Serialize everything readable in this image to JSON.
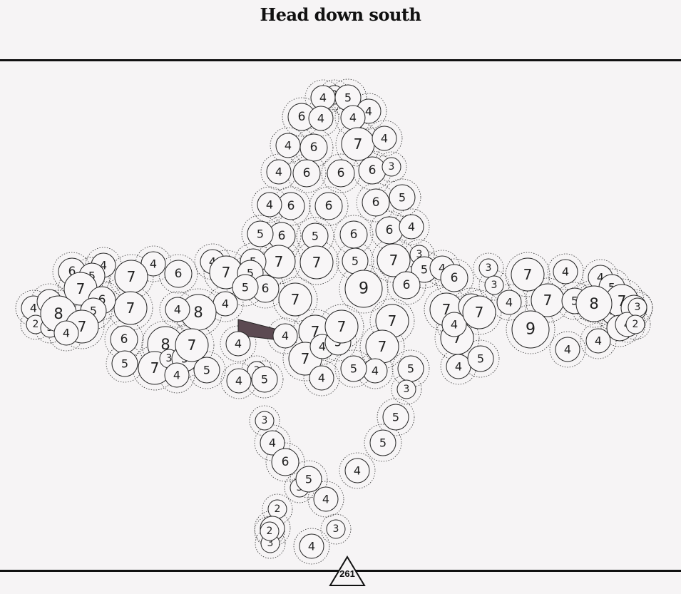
{
  "title": "Head down south",
  "moves_left": "261",
  "colors": {
    "background": "#f6f4f5",
    "bubble_fill": "#f8f6f7",
    "bubble_stroke": "#222222",
    "link_fill": "#5c4a52"
  },
  "board": {
    "bubbles": [
      {
        "v": "2"
      },
      {
        "v": "5"
      },
      {
        "v": "4"
      },
      {
        "v": "4"
      },
      {
        "v": "6"
      },
      {
        "v": "4"
      },
      {
        "v": "4"
      },
      {
        "v": "6"
      },
      {
        "v": "7"
      },
      {
        "v": "4"
      },
      {
        "v": "4"
      },
      {
        "v": "6"
      },
      {
        "v": "6"
      },
      {
        "v": "6"
      },
      {
        "v": "3"
      },
      {
        "v": "4"
      },
      {
        "v": "6"
      },
      {
        "v": "6"
      },
      {
        "v": "6"
      },
      {
        "v": "5"
      },
      {
        "v": "4"
      },
      {
        "v": "6"
      },
      {
        "v": "5"
      },
      {
        "v": "6"
      },
      {
        "v": "6"
      },
      {
        "v": "4"
      },
      {
        "v": "7"
      },
      {
        "v": "7"
      },
      {
        "v": "5"
      },
      {
        "v": "7"
      },
      {
        "v": "3"
      },
      {
        "v": "5"
      },
      {
        "v": "4"
      },
      {
        "v": "4"
      },
      {
        "v": "7"
      },
      {
        "v": "5"
      },
      {
        "v": "5"
      },
      {
        "v": "6"
      },
      {
        "v": "7"
      },
      {
        "v": "5"
      },
      {
        "v": "9"
      },
      {
        "v": "6"
      },
      {
        "v": "6"
      },
      {
        "v": "3"
      },
      {
        "v": "4"
      },
      {
        "v": "6"
      },
      {
        "v": "4"
      },
      {
        "v": "7"
      },
      {
        "v": "4"
      },
      {
        "v": "4"
      },
      {
        "v": "7"
      },
      {
        "v": "6"
      },
      {
        "v": "5"
      },
      {
        "v": "7"
      },
      {
        "v": "7"
      },
      {
        "v": "6"
      },
      {
        "v": "4"
      },
      {
        "v": "2"
      },
      {
        "v": "3"
      },
      {
        "v": "4"
      },
      {
        "v": "8"
      },
      {
        "v": "5"
      },
      {
        "v": "7"
      },
      {
        "v": "4"
      },
      {
        "v": "6"
      },
      {
        "v": "5"
      },
      {
        "v": "5"
      },
      {
        "v": "4"
      },
      {
        "v": "7"
      },
      {
        "v": "8"
      },
      {
        "v": "4"
      },
      {
        "v": "8"
      },
      {
        "v": "7"
      },
      {
        "v": "3"
      },
      {
        "v": "5"
      },
      {
        "v": "7"
      },
      {
        "v": "4"
      },
      {
        "v": "5"
      },
      {
        "v": "7"
      },
      {
        "v": "4"
      },
      {
        "v": "4"
      },
      {
        "v": "7"
      },
      {
        "v": "7"
      },
      {
        "v": "4"
      },
      {
        "v": "5"
      },
      {
        "v": "7"
      },
      {
        "v": "7"
      },
      {
        "v": "4"
      },
      {
        "v": "5"
      },
      {
        "v": "4"
      },
      {
        "v": "7"
      },
      {
        "v": "5"
      },
      {
        "v": "4"
      },
      {
        "v": "5"
      },
      {
        "v": "7"
      },
      {
        "v": "4"
      },
      {
        "v": "5"
      },
      {
        "v": "4"
      },
      {
        "v": "3"
      },
      {
        "v": "7"
      },
      {
        "v": "6"
      },
      {
        "v": "7"
      },
      {
        "v": "5"
      },
      {
        "v": "8"
      },
      {
        "v": "5"
      },
      {
        "v": "4"
      },
      {
        "v": "9"
      },
      {
        "v": "4"
      },
      {
        "v": "4"
      },
      {
        "v": "3"
      },
      {
        "v": "2"
      },
      {
        "v": "4"
      },
      {
        "v": "5"
      },
      {
        "v": "3"
      },
      {
        "v": "5"
      },
      {
        "v": "4"
      },
      {
        "v": "5"
      },
      {
        "v": "3"
      },
      {
        "v": "5"
      },
      {
        "v": "5"
      },
      {
        "v": "4"
      },
      {
        "v": "4"
      },
      {
        "v": "3"
      },
      {
        "v": "6"
      },
      {
        "v": "2"
      },
      {
        "v": "4"
      },
      {
        "v": "4"
      },
      {
        "v": "3"
      },
      {
        "v": "3"
      },
      {
        "v": "4"
      },
      {
        "v": "3"
      },
      {
        "v": "2"
      },
      {
        "v": "5"
      }
    ]
  }
}
